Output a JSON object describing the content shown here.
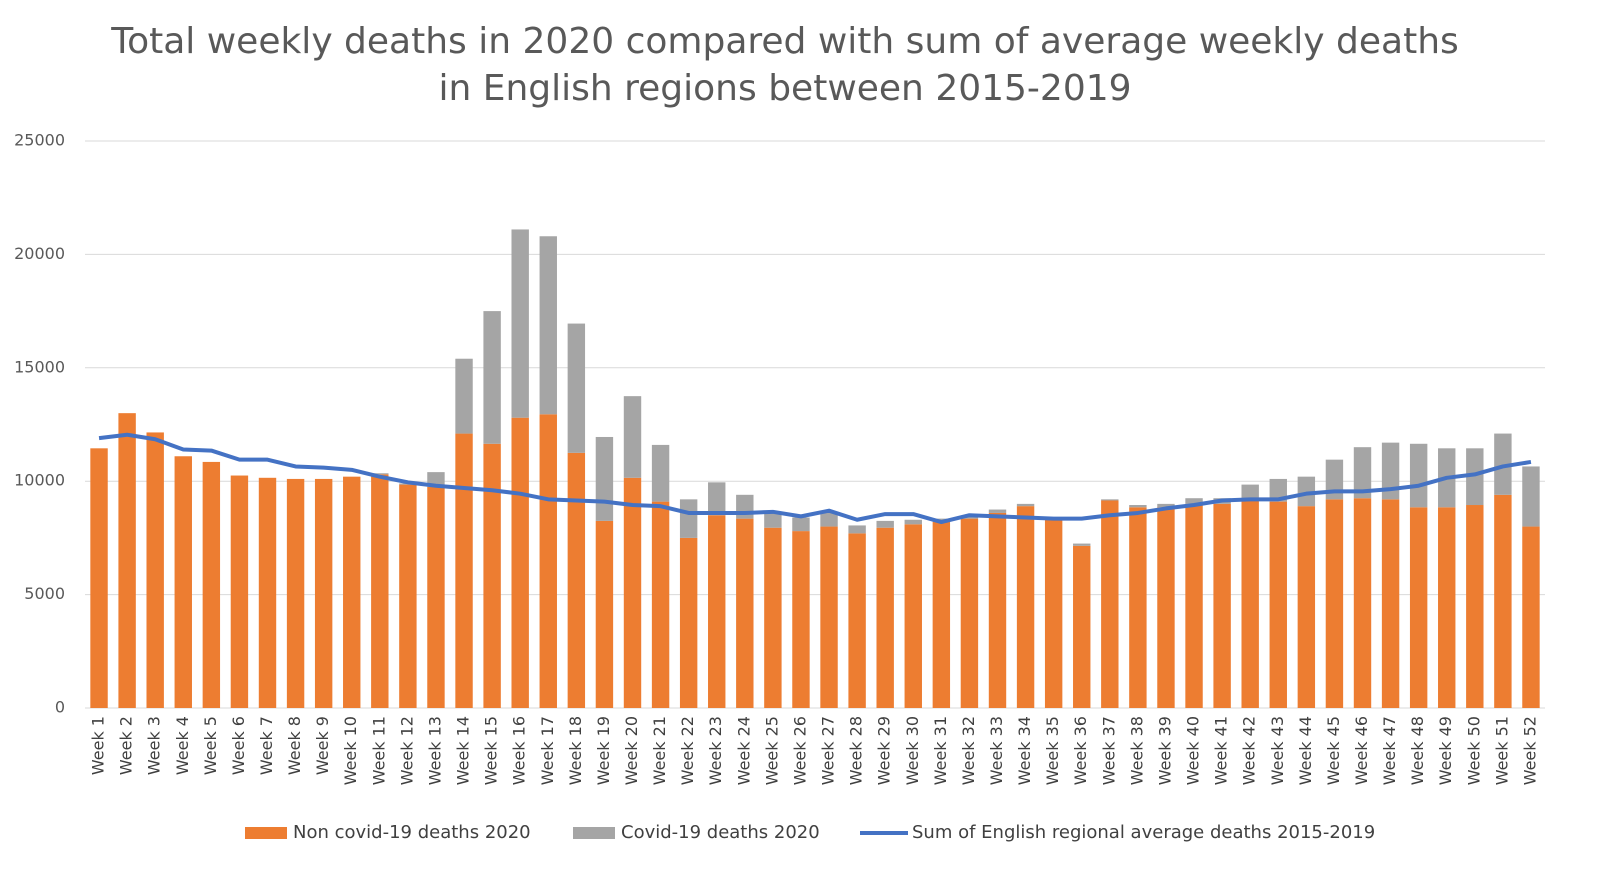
{
  "chart_data": {
    "type": "bar",
    "title": [
      "Total weekly deaths in 2020 compared with sum of average weekly deaths",
      "in English regions between 2015-2019"
    ],
    "categories": [
      "Week 1",
      "Week 2",
      "Week 3",
      "Week 4",
      "Week 5",
      "Week 6",
      "Week 7",
      "Week 8",
      "Week 9",
      "Week 10",
      "Week 11",
      "Week 12",
      "Week 13",
      "Week 14",
      "Week 15",
      "Week 16",
      "Week 17",
      "Week 18",
      "Week 19",
      "Week 20",
      "Week 21",
      "Week 22",
      "Week 23",
      "Week 24",
      "Week 25",
      "Week 26",
      "Week 27",
      "Week 28",
      "Week 29",
      "Week 30",
      "Week 31",
      "Week 32",
      "Week 33",
      "Week 34",
      "Week 35",
      "Week 36",
      "Week 37",
      "Week 38",
      "Week 39",
      "Week 40",
      "Week 41",
      "Week 42",
      "Week 43",
      "Week 44",
      "Week 45",
      "Week 46",
      "Week 47",
      "Week 48",
      "Week 49",
      "Week 50",
      "Week 51",
      "Week 52"
    ],
    "series": [
      {
        "name": "Non covid-19 deaths 2020",
        "color": "#ed7d31",
        "type": "bar",
        "stack": true,
        "values": [
          11450,
          13000,
          12150,
          11100,
          10850,
          10250,
          10150,
          10100,
          10100,
          10200,
          10300,
          9850,
          9750,
          12100,
          11650,
          12800,
          12950,
          11250,
          8250,
          10150,
          9100,
          7500,
          8500,
          8350,
          7950,
          7800,
          8000,
          7700,
          7950,
          8100,
          8200,
          8350,
          8600,
          8900,
          8300,
          7150,
          9150,
          8850,
          8850,
          9000,
          9000,
          9150,
          9100,
          8900,
          9200,
          9250,
          9200,
          8850,
          8850,
          8950,
          9400,
          8000
        ]
      },
      {
        "name": "Covid-19 deaths 2020",
        "color": "#a5a5a5",
        "type": "bar",
        "stack": true,
        "values": [
          0,
          0,
          0,
          0,
          0,
          0,
          0,
          0,
          0,
          0,
          50,
          50,
          650,
          3300,
          5850,
          8300,
          7850,
          5700,
          3700,
          3600,
          2500,
          1700,
          1450,
          1050,
          700,
          600,
          600,
          350,
          300,
          200,
          150,
          100,
          150,
          100,
          50,
          100,
          50,
          100,
          150,
          250,
          250,
          700,
          1000,
          1300,
          1750,
          2250,
          2500,
          2800,
          2600,
          2500,
          2700,
          2650
        ]
      },
      {
        "name": "Sum of English regional average deaths 2015-2019",
        "color": "#4472c4",
        "type": "line",
        "values": [
          11900,
          12050,
          11850,
          11400,
          11350,
          10950,
          10950,
          10650,
          10600,
          10500,
          10200,
          9950,
          9800,
          9700,
          9600,
          9450,
          9200,
          9150,
          9100,
          8950,
          8900,
          8600,
          8600,
          8600,
          8650,
          8450,
          8700,
          8300,
          8550,
          8550,
          8200,
          8500,
          8450,
          8400,
          8350,
          8350,
          8500,
          8600,
          8800,
          8950,
          9150,
          9200,
          9200,
          9450,
          9550,
          9550,
          9650,
          9800,
          10150,
          10300,
          10650,
          10850
        ]
      }
    ],
    "ylim": [
      0,
      25000
    ],
    "yticks": [
      0,
      5000,
      10000,
      15000,
      20000,
      25000
    ],
    "grid": true,
    "legend": "bottom"
  }
}
